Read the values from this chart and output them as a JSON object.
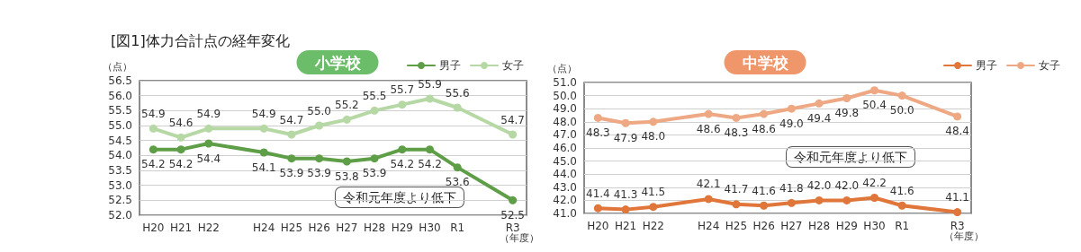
{
  "chart_data": [
    {
      "type": "line",
      "title": "[図1]体力合計点の経年変化",
      "subtitle": "小学校",
      "ylabel": "（点）",
      "xlabel": "（年度）",
      "categories": [
        "H20",
        "H21",
        "H22",
        null,
        "H24",
        "H25",
        "H26",
        "H27",
        "H28",
        "H29",
        "H30",
        "R1",
        null,
        "R3"
      ],
      "series": [
        {
          "name": "男子",
          "color": "#5e9e47",
          "values": [
            54.2,
            54.2,
            54.4,
            null,
            54.1,
            53.9,
            53.9,
            53.8,
            53.9,
            54.2,
            54.2,
            53.6,
            null,
            52.5
          ],
          "value_labels": [
            "54.2",
            "54.2",
            "54.4",
            null,
            "54.1",
            "53.9",
            "53.9",
            "53.8",
            "53.9",
            "54.2",
            "54.2",
            "53.6",
            null,
            "52.5"
          ]
        },
        {
          "name": "女子",
          "color": "#b5d8a4",
          "values": [
            54.9,
            54.6,
            54.9,
            null,
            54.9,
            54.7,
            55.0,
            55.2,
            55.5,
            55.7,
            55.9,
            55.6,
            null,
            54.7
          ],
          "value_labels": [
            "54.9",
            "54.6",
            "54.9",
            null,
            "54.9",
            "54.7",
            "55.0",
            "55.2",
            "55.5",
            "55.7",
            "55.9",
            "55.6",
            null,
            "54.7"
          ]
        }
      ],
      "ylim": [
        52,
        56.5
      ],
      "yticks": [
        {
          "value": 52,
          "label": "52.0"
        },
        52.5,
        {
          "value": 53,
          "label": "53.0"
        },
        53.5,
        {
          "value": 54,
          "label": "54.0"
        },
        54.5,
        {
          "value": 55,
          "label": "55.0"
        },
        55.5,
        {
          "value": 56,
          "label": "56.0"
        },
        56.5
      ],
      "annotations": [
        "令和元年度より低下"
      ],
      "grid": "y",
      "legend": "top right",
      "marker": "circle",
      "line_style": "solid"
    },
    {
      "type": "line",
      "subtitle": "中学校",
      "ylabel": "（点）",
      "xlabel": "（年度）",
      "categories": [
        "H20",
        "H21",
        "H22",
        null,
        "H24",
        "H25",
        "H26",
        "H27",
        "H28",
        "H29",
        "H30",
        "R1",
        null,
        "R3"
      ],
      "series": [
        {
          "name": "男子",
          "color": "#e0763a",
          "values": [
            41.4,
            41.3,
            41.5,
            null,
            42.1,
            41.7,
            41.6,
            41.8,
            42.0,
            42.0,
            42.2,
            41.6,
            null,
            41.1
          ],
          "value_labels": [
            "41.4",
            "41.3",
            "41.5",
            null,
            "42.1",
            "41.7",
            "41.6",
            "41.8",
            "42.0",
            "42.0",
            "42.2",
            "41.6",
            null,
            "41.1"
          ]
        },
        {
          "name": "女子",
          "color": "#eea883",
          "values": [
            48.3,
            47.9,
            48.0,
            null,
            48.6,
            48.3,
            48.6,
            49.0,
            49.4,
            49.8,
            50.4,
            50.0,
            null,
            48.4
          ],
          "value_labels": [
            "48.3",
            "47.9",
            "48.0",
            null,
            "48.6",
            "48.3",
            "48.6",
            "49.0",
            "49.4",
            "49.8",
            "50.4",
            "50.0",
            null,
            "48.4"
          ]
        }
      ],
      "ylim": [
        41,
        51
      ],
      "yticks": [
        {
          "value": 41,
          "label": "41.0"
        },
        {
          "value": 42,
          "label": "42.0"
        },
        {
          "value": 43,
          "label": "43.0"
        },
        {
          "value": 44,
          "label": "44.0"
        },
        {
          "value": 45,
          "label": "45.0"
        },
        {
          "value": 46,
          "label": "46.0"
        },
        {
          "value": 47,
          "label": "47.0"
        },
        {
          "value": 48,
          "label": "48.0"
        },
        {
          "value": 49,
          "label": "49.0"
        },
        {
          "value": 50,
          "label": "50.0"
        },
        {
          "value": 51,
          "label": "51.0"
        }
      ],
      "annotations": [
        "令和元年度より低下"
      ],
      "grid": "y",
      "legend": "top right",
      "marker": "circle",
      "line_style": "solid"
    }
  ]
}
